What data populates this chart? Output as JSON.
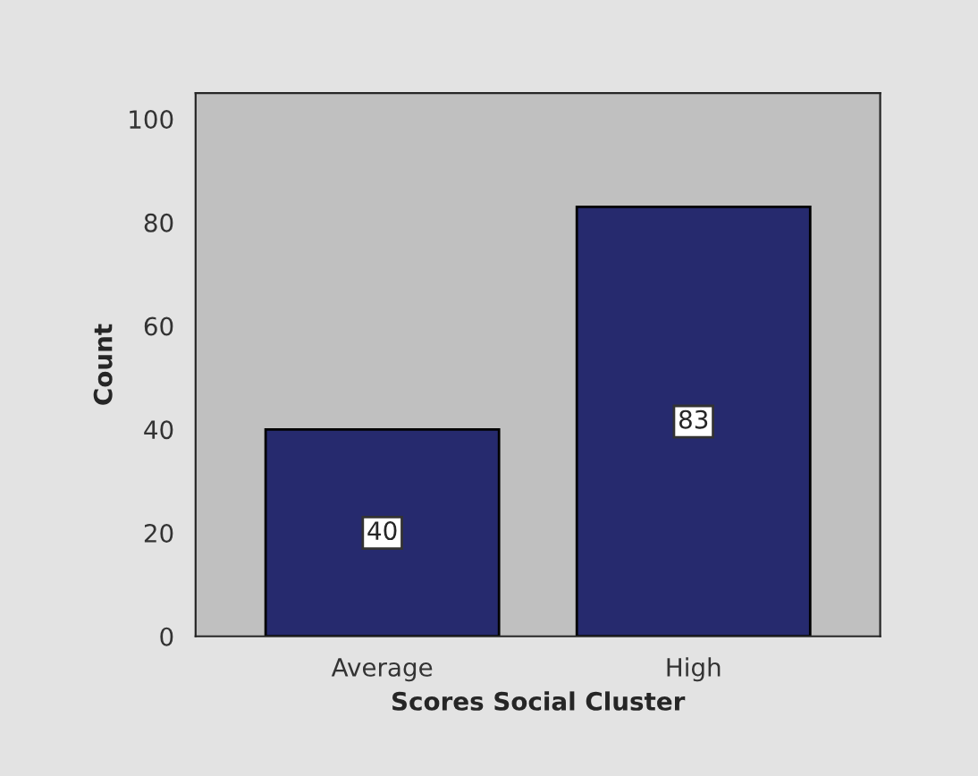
{
  "chart_data": {
    "type": "bar",
    "xlabel": "Scores Social Cluster",
    "ylabel": "Count",
    "categories": [
      "Average",
      "High"
    ],
    "values": [
      40,
      83
    ],
    "color": "#262a6e",
    "ylim": [
      0,
      105
    ],
    "yticks": [
      0,
      20,
      40,
      60,
      80,
      100
    ],
    "grid": false,
    "data_labels": true
  }
}
